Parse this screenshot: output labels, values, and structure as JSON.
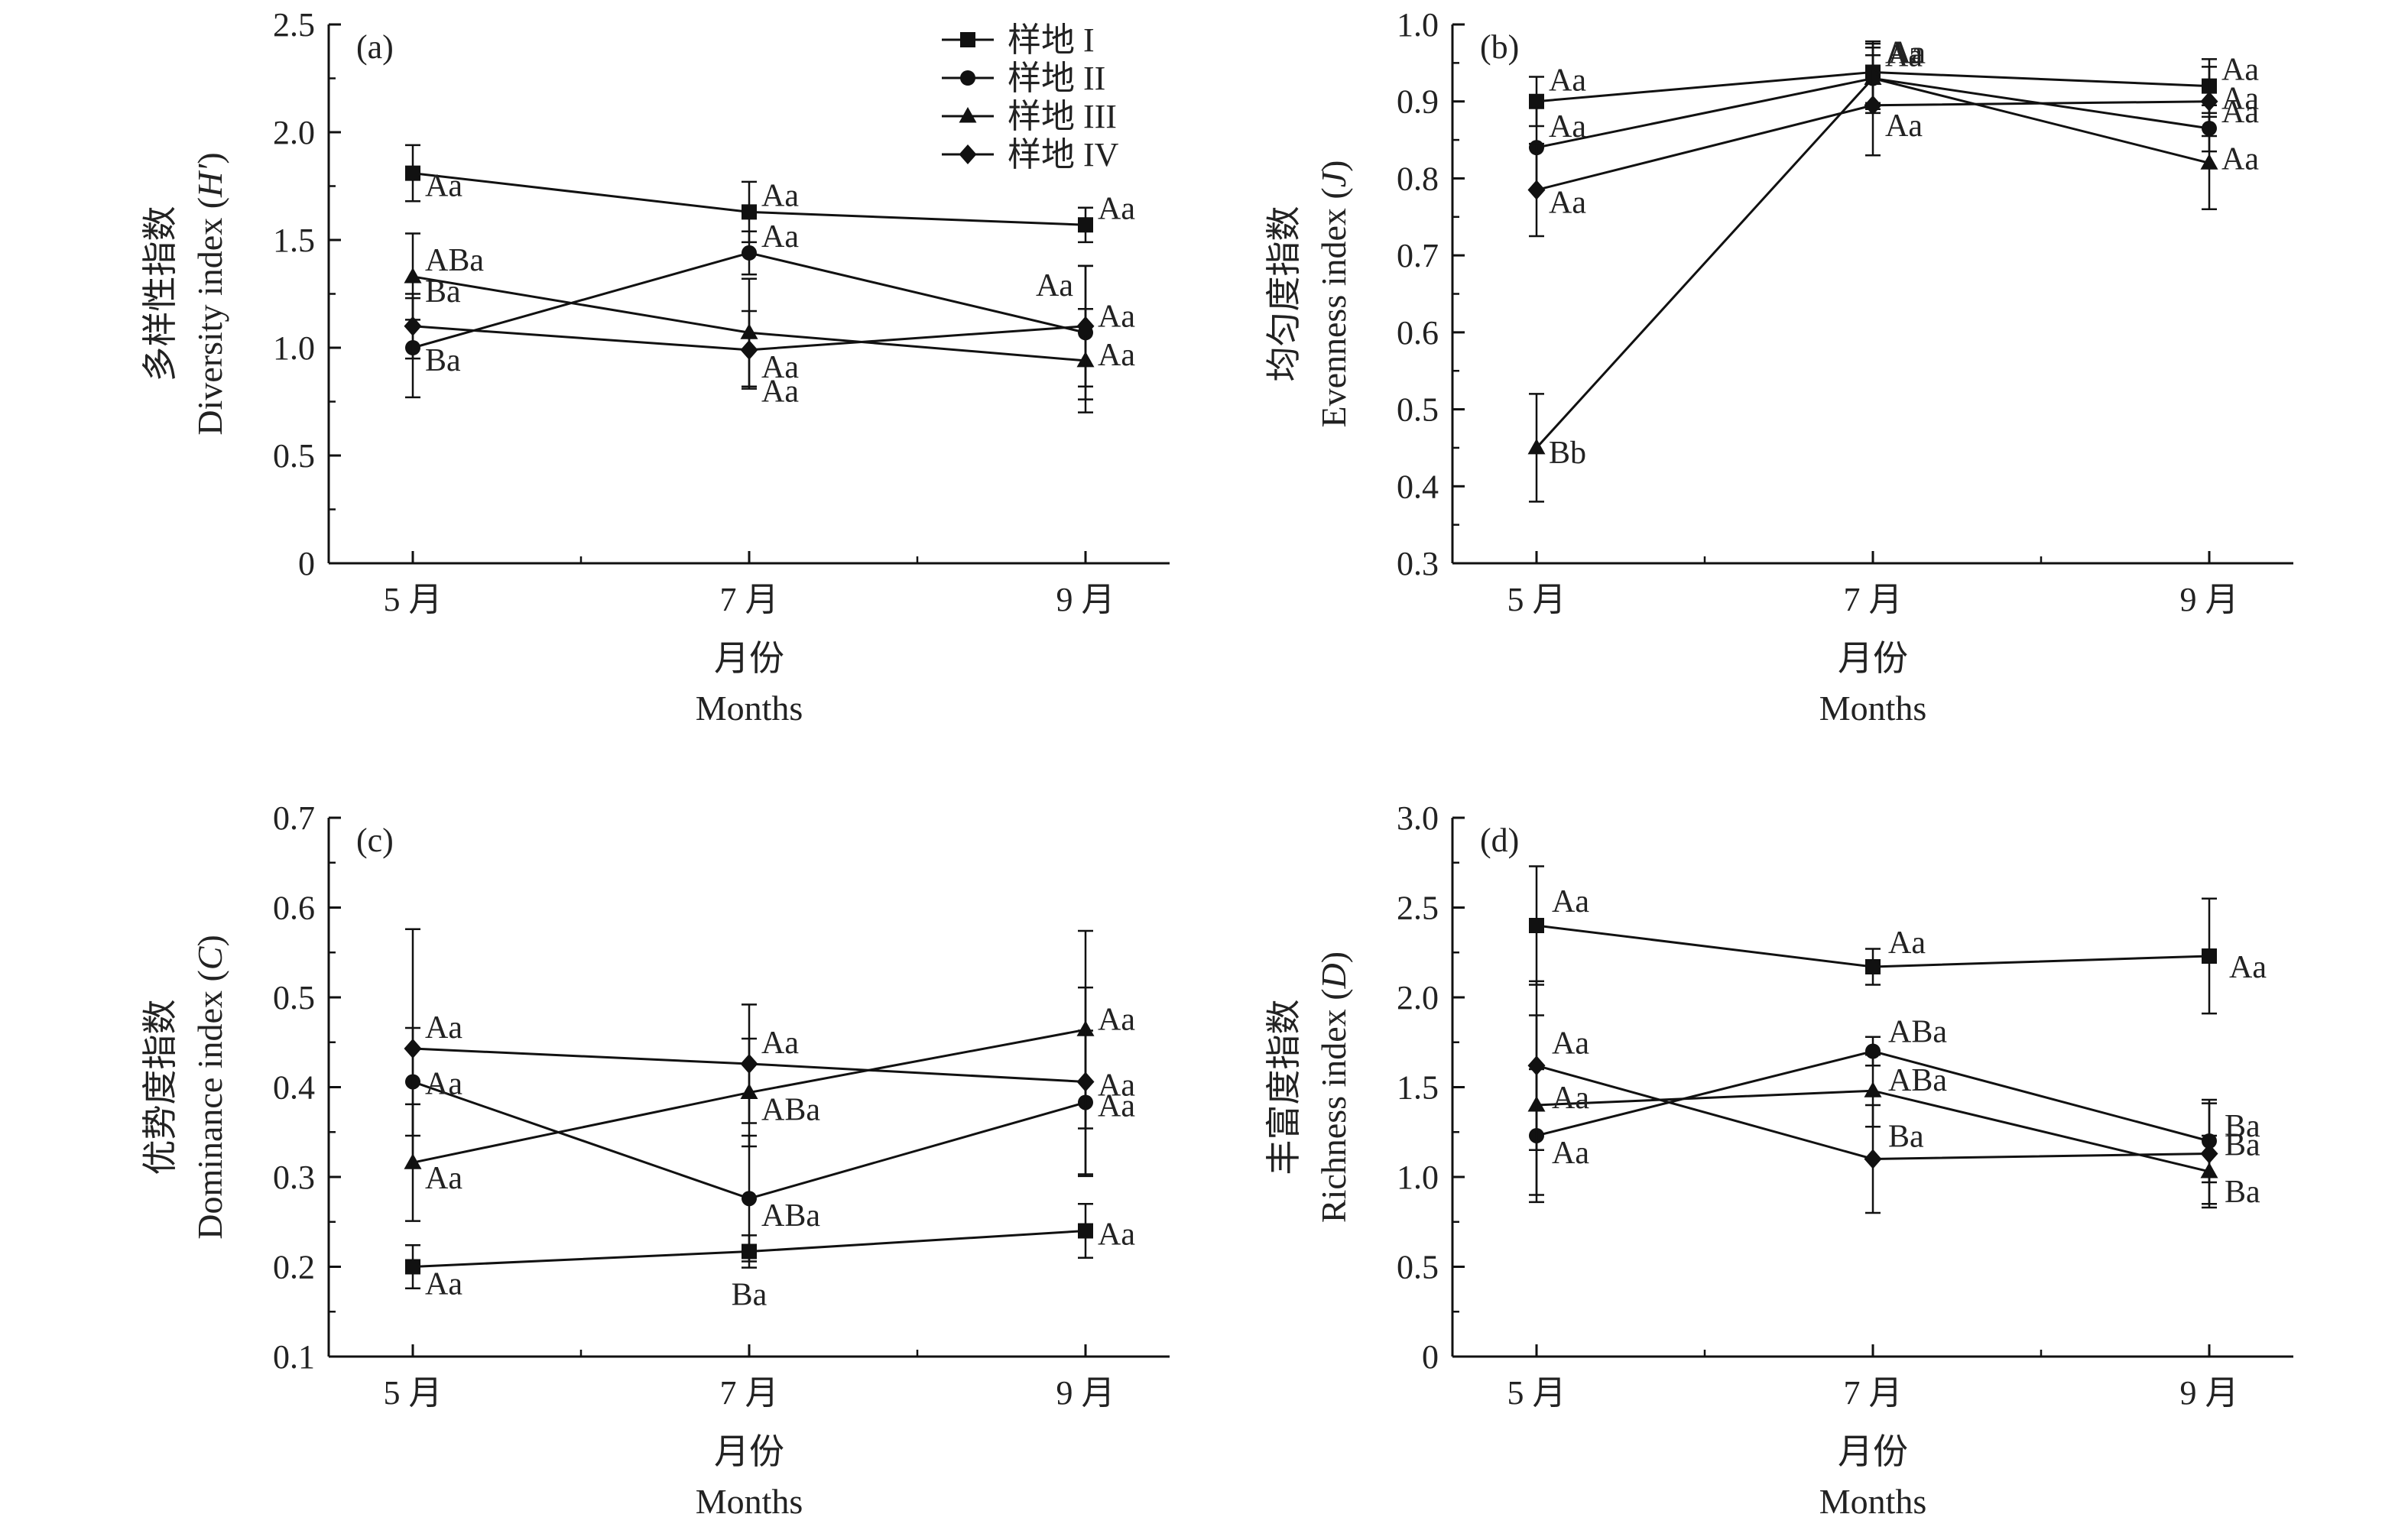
{
  "legend": [
    {
      "name": "样地 I",
      "marker": "square"
    },
    {
      "name": "样地 II",
      "marker": "circle"
    },
    {
      "name": "样地 III",
      "marker": "triangle"
    },
    {
      "name": "样地 IV",
      "marker": "diamond"
    }
  ],
  "chart_data": [
    {
      "type": "line",
      "panel_label": "(a)",
      "categories": [
        "5 月",
        "7 月",
        "9 月"
      ],
      "xlabel": "月份",
      "xlabel_en": "Months",
      "ylabel": "多样性指数",
      "ylabel_en_parts": [
        "Diversity index (",
        "H′",
        ")"
      ],
      "ylim": [
        0,
        2.5
      ],
      "yticks": [
        "0",
        "0.5",
        "1.0",
        "1.5",
        "2.0",
        "2.5"
      ],
      "show_legend": true,
      "series": [
        {
          "name": "样地 I",
          "marker": "square",
          "values": [
            1.81,
            1.63,
            1.57
          ],
          "err": [
            0.13,
            0.14,
            0.08
          ],
          "labels": [
            "Aa",
            "Aa",
            "Aa"
          ]
        },
        {
          "name": "样地 II",
          "marker": "circle",
          "values": [
            1.0,
            1.44,
            1.07
          ],
          "err": [
            0.23,
            0.1,
            0.31
          ],
          "labels": [
            "Ba",
            "Aa",
            "Aa"
          ]
        },
        {
          "name": "样地 III",
          "marker": "triangle",
          "values": [
            1.33,
            1.07,
            0.94
          ],
          "err": [
            0.2,
            0.25,
            0.24
          ],
          "labels": [
            "ABa",
            "Aa",
            "Aa"
          ]
        },
        {
          "name": "样地 IV",
          "marker": "diamond",
          "values": [
            1.1,
            0.99,
            1.1
          ],
          "err": [
            0.15,
            0.18,
            0.28
          ],
          "labels": [
            "Ba",
            "Aa",
            "Aa"
          ]
        }
      ]
    },
    {
      "type": "line",
      "panel_label": "(b)",
      "categories": [
        "5 月",
        "7 月",
        "9 月"
      ],
      "xlabel": "月份",
      "xlabel_en": "Months",
      "ylabel": "均匀度指数",
      "ylabel_en_parts": [
        "Evenness index (",
        "J",
        ")"
      ],
      "ylim": [
        0.3,
        1.0
      ],
      "yticks": [
        "0.3",
        "0.4",
        "0.5",
        "0.6",
        "0.7",
        "0.8",
        "0.9",
        "1.0"
      ],
      "show_legend": false,
      "series": [
        {
          "name": "样地 I",
          "marker": "square",
          "values": [
            0.9,
            0.938,
            0.92
          ],
          "err": [
            0.032,
            0.04,
            0.035
          ],
          "labels": [
            "Aa",
            "Aa",
            "Aa"
          ]
        },
        {
          "name": "样地 II",
          "marker": "circle",
          "values": [
            0.84,
            0.93,
            0.865
          ],
          "err": [
            0.055,
            0.04,
            0.03
          ],
          "labels": [
            "Aa",
            "Aa",
            "Aa"
          ]
        },
        {
          "name": "样地 III",
          "marker": "triangle",
          "values": [
            0.45,
            0.93,
            0.82
          ],
          "err": [
            0.07,
            0.045,
            0.06
          ],
          "labels": [
            "Bb",
            "Aa",
            "Aa"
          ]
        },
        {
          "name": "样地 IV",
          "marker": "diamond",
          "values": [
            0.785,
            0.895,
            0.9
          ],
          "err": [
            0.06,
            0.065,
            0.045
          ],
          "labels": [
            "Aa",
            "Aa",
            "Aa"
          ]
        }
      ]
    },
    {
      "type": "line",
      "panel_label": "(c)",
      "categories": [
        "5 月",
        "7 月",
        "9 月"
      ],
      "xlabel": "月份",
      "xlabel_en": "Months",
      "ylabel": "优势度指数",
      "ylabel_en_parts": [
        "Dominance index (",
        "C",
        ")"
      ],
      "ylim": [
        0.1,
        0.7
      ],
      "yticks": [
        "0.1",
        "0.2",
        "0.3",
        "0.4",
        "0.5",
        "0.6",
        "0.7"
      ],
      "show_legend": false,
      "series": [
        {
          "name": "样地 I",
          "marker": "square",
          "values": [
            0.2,
            0.217,
            0.24
          ],
          "err": [
            0.024,
            0.018,
            0.03
          ],
          "labels": [
            "Aa",
            "Ba",
            "Aa"
          ]
        },
        {
          "name": "样地 II",
          "marker": "circle",
          "values": [
            0.406,
            0.276,
            0.383
          ],
          "err": [
            0.06,
            0.07,
            0.08
          ],
          "labels": [
            "Aa",
            "ABa",
            "Aa"
          ]
        },
        {
          "name": "样地 III",
          "marker": "triangle",
          "values": [
            0.316,
            0.394,
            0.464
          ],
          "err": [
            0.065,
            0.06,
            0.11
          ],
          "labels": [
            "Aa",
            "ABa",
            "Aa"
          ]
        },
        {
          "name": "样地 IV",
          "marker": "diamond",
          "values": [
            0.443,
            0.426,
            0.406
          ],
          "err": [
            0.133,
            0.066,
            0.105
          ],
          "labels": [
            "Aa",
            "Aa",
            "Aa"
          ]
        }
      ]
    },
    {
      "type": "line",
      "panel_label": "(d)",
      "categories": [
        "5 月",
        "7 月",
        "9 月"
      ],
      "xlabel": "月份",
      "xlabel_en": "Months",
      "ylabel": "丰富度指数",
      "ylabel_en_parts": [
        "Richness index (",
        "D",
        ")"
      ],
      "ylim": [
        0,
        3.0
      ],
      "yticks": [
        "0",
        "0.5",
        "1.0",
        "1.5",
        "2.0",
        "2.5",
        "3.0"
      ],
      "show_legend": false,
      "series": [
        {
          "name": "样地 I",
          "marker": "square",
          "values": [
            2.4,
            2.17,
            2.23
          ],
          "err": [
            0.33,
            0.1,
            0.32
          ],
          "labels": [
            "Aa",
            "Aa",
            "Aa"
          ]
        },
        {
          "name": "样地 II",
          "marker": "circle",
          "values": [
            1.23,
            1.7,
            1.2
          ],
          "err": [
            0.37,
            0.08,
            0.23
          ],
          "labels": [
            "Aa",
            "ABa",
            "Ba"
          ]
        },
        {
          "name": "样地 III",
          "marker": "triangle",
          "values": [
            1.4,
            1.48,
            1.03
          ],
          "err": [
            0.5,
            0.2,
            0.2
          ],
          "labels": [
            "Aa",
            "ABa",
            "Ba"
          ]
        },
        {
          "name": "样地 IV",
          "marker": "diamond",
          "values": [
            1.62,
            1.1,
            1.13
          ],
          "err": [
            0.47,
            0.3,
            0.28
          ],
          "labels": [
            "Aa",
            "Ba",
            "Ba"
          ]
        }
      ]
    }
  ]
}
